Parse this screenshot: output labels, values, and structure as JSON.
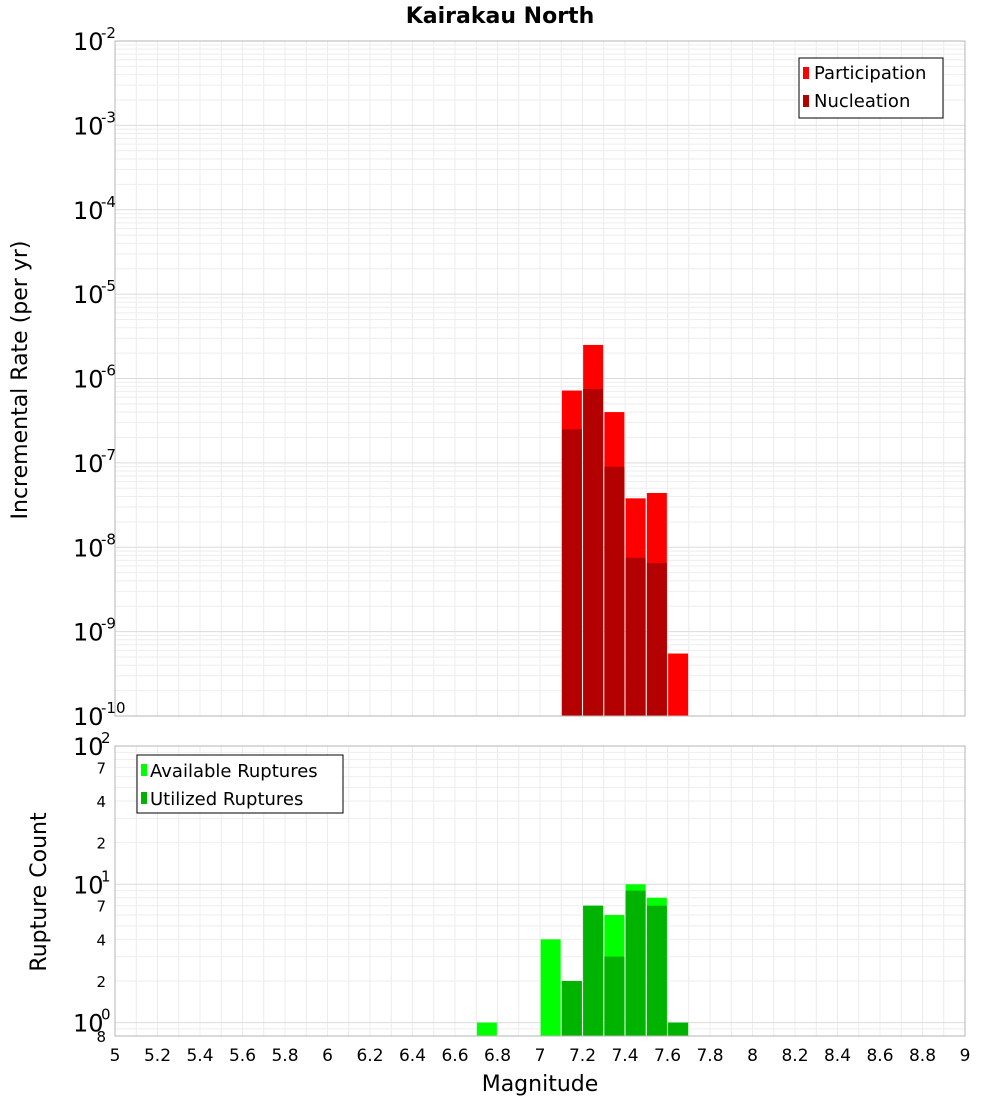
{
  "chart_data": [
    {
      "type": "bar",
      "title": "Kairakau North",
      "xlabel": "",
      "ylabel": "Incremental Rate (per yr)",
      "y_scale": "log",
      "xlim": [
        5,
        9
      ],
      "ylim": [
        1e-10,
        0.01
      ],
      "y_ticks": [
        {
          "base": "10",
          "exp": "-2",
          "value": 0.01
        },
        {
          "base": "10",
          "exp": "-3",
          "value": 0.001
        },
        {
          "base": "10",
          "exp": "-4",
          "value": 0.0001
        },
        {
          "base": "10",
          "exp": "-5",
          "value": 1e-05
        },
        {
          "base": "10",
          "exp": "-6",
          "value": 1e-06
        },
        {
          "base": "10",
          "exp": "-7",
          "value": 1e-07
        },
        {
          "base": "10",
          "exp": "-8",
          "value": 1e-08
        },
        {
          "base": "10",
          "exp": "-9",
          "value": 1e-09
        },
        {
          "base": "10",
          "exp": "-10",
          "value": 1e-10
        }
      ],
      "legend": {
        "placement": "top-right"
      },
      "series": [
        {
          "name": "Participation",
          "color": "#ff0000",
          "points": [
            {
              "x": 7.15,
              "y": 7.2e-07
            },
            {
              "x": 7.25,
              "y": 2.5e-06
            },
            {
              "x": 7.35,
              "y": 4e-07
            },
            {
              "x": 7.45,
              "y": 3.8e-08
            },
            {
              "x": 7.55,
              "y": 4.4e-08
            },
            {
              "x": 7.65,
              "y": 5.5e-10
            }
          ]
        },
        {
          "name": "Nucleation",
          "color": "#b30000",
          "points": [
            {
              "x": 7.15,
              "y": 2.5e-07
            },
            {
              "x": 7.25,
              "y": 7.5e-07
            },
            {
              "x": 7.35,
              "y": 9e-08
            },
            {
              "x": 7.45,
              "y": 7.5e-09
            },
            {
              "x": 7.55,
              "y": 6.5e-09
            }
          ]
        }
      ]
    },
    {
      "type": "bar",
      "title": "",
      "xlabel": "Magnitude",
      "ylabel": "Rupture Count",
      "y_scale": "log",
      "xlim": [
        5,
        9
      ],
      "ylim": [
        0.8,
        100
      ],
      "x_ticks": [
        "5",
        "5.2",
        "5.4",
        "5.6",
        "5.8",
        "6",
        "6.2",
        "6.4",
        "6.6",
        "6.8",
        "7",
        "7.2",
        "7.4",
        "7.6",
        "7.8",
        "8",
        "8.2",
        "8.4",
        "8.6",
        "8.8",
        "9"
      ],
      "y_ticks": [
        {
          "base": "10",
          "exp": "2",
          "value": 100
        },
        {
          "base": "10",
          "exp": "1",
          "value": 10
        },
        {
          "base": "10",
          "exp": "0",
          "value": 1
        }
      ],
      "y_minor_labels": [
        {
          "label": "7",
          "value": 70
        },
        {
          "label": "4",
          "value": 40
        },
        {
          "label": "2",
          "value": 20
        },
        {
          "label": "7",
          "value": 7
        },
        {
          "label": "4",
          "value": 4
        },
        {
          "label": "2",
          "value": 2
        },
        {
          "label": "8",
          "value": 0.8
        }
      ],
      "legend": {
        "placement": "top-left"
      },
      "series": [
        {
          "name": "Available Ruptures",
          "color": "#00ff00",
          "points": [
            {
              "x": 6.75,
              "y": 1
            },
            {
              "x": 7.05,
              "y": 4
            },
            {
              "x": 7.15,
              "y": 2
            },
            {
              "x": 7.25,
              "y": 7
            },
            {
              "x": 7.35,
              "y": 6
            },
            {
              "x": 7.45,
              "y": 10
            },
            {
              "x": 7.55,
              "y": 8
            },
            {
              "x": 7.65,
              "y": 1
            }
          ]
        },
        {
          "name": "Utilized Ruptures",
          "color": "#00b300",
          "points": [
            {
              "x": 7.15,
              "y": 2
            },
            {
              "x": 7.25,
              "y": 7
            },
            {
              "x": 7.35,
              "y": 3
            },
            {
              "x": 7.45,
              "y": 9
            },
            {
              "x": 7.55,
              "y": 7
            },
            {
              "x": 7.65,
              "y": 1
            }
          ]
        }
      ]
    }
  ]
}
